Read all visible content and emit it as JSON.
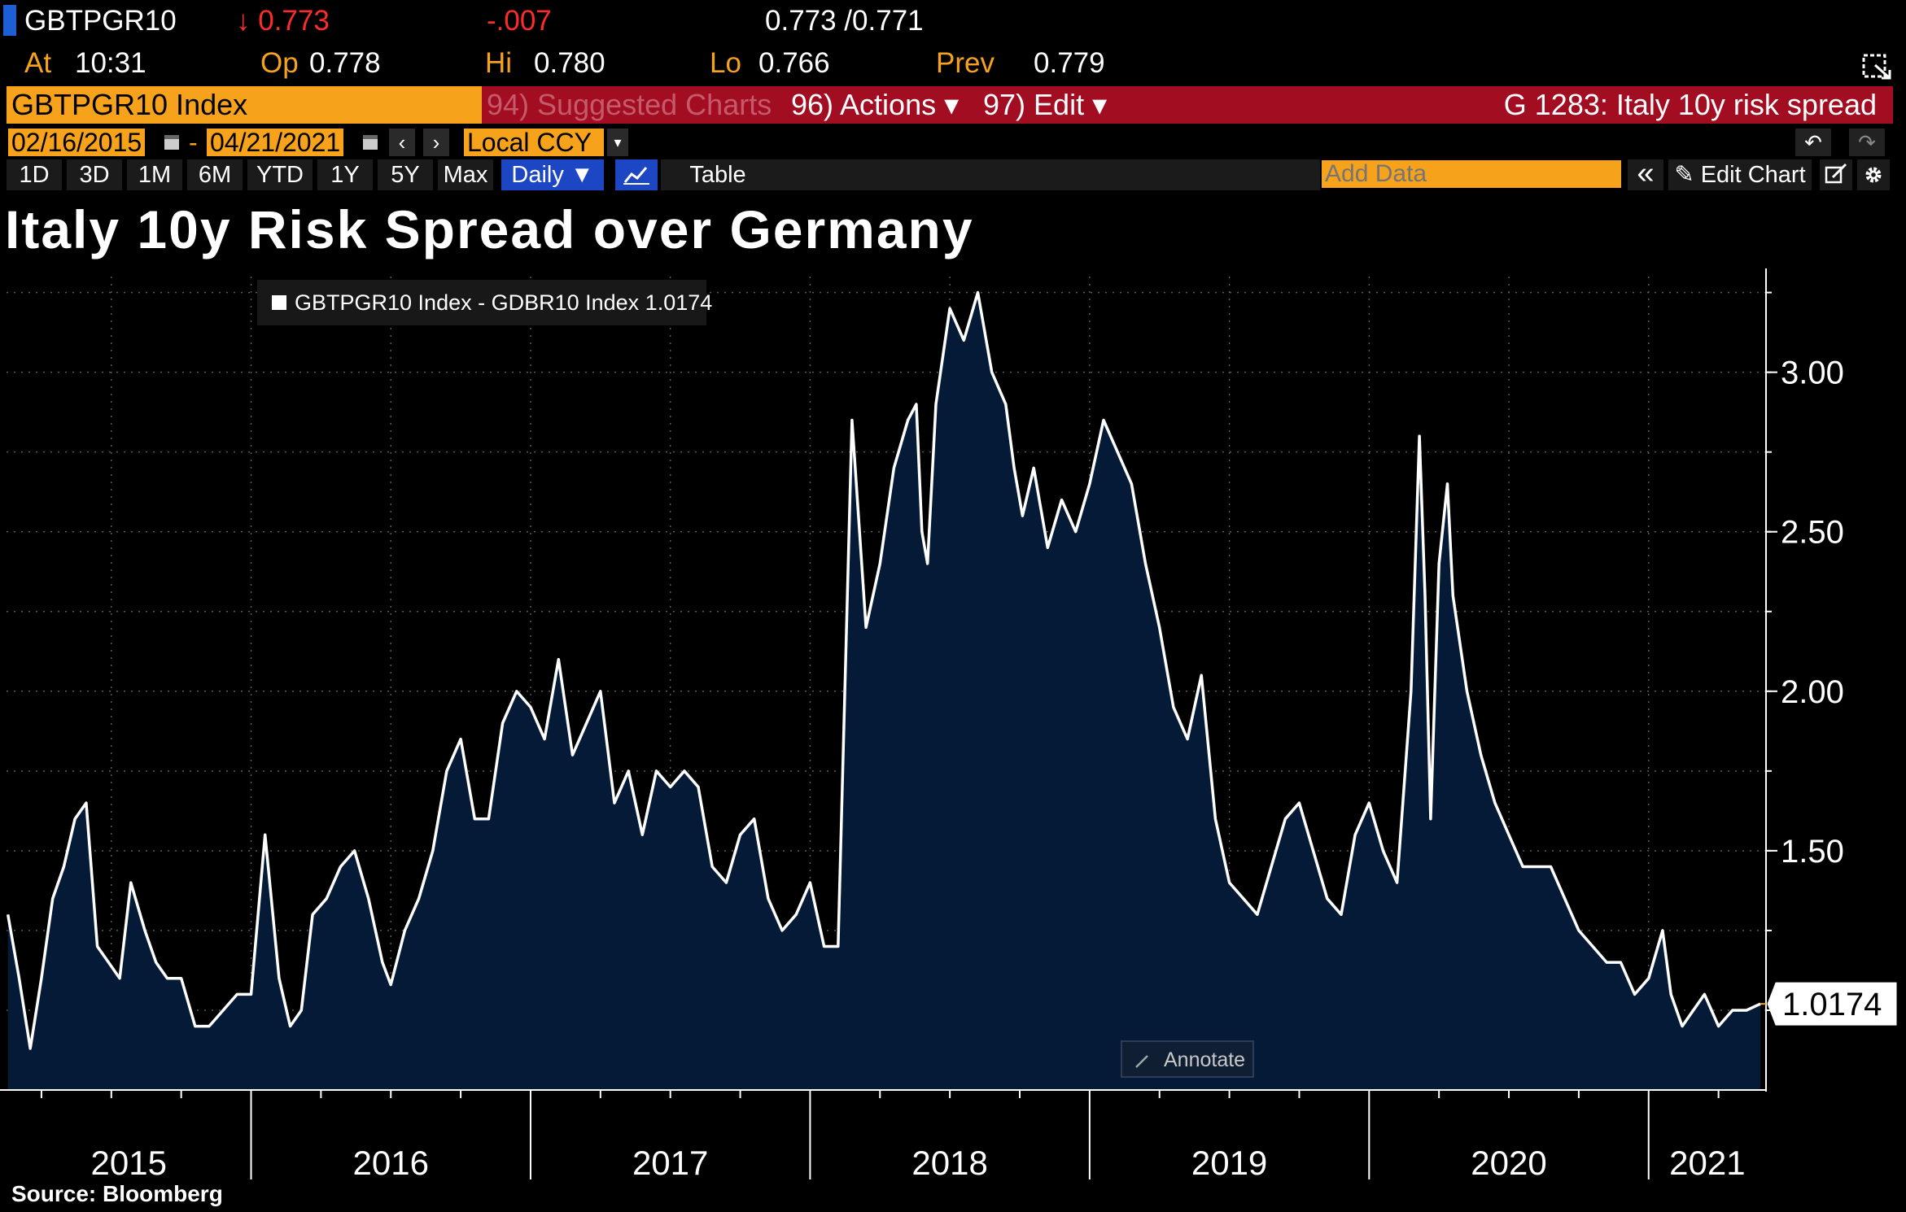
{
  "quote": {
    "ticker": "GBTPGR10",
    "last": "↓ 0.773",
    "change": "-.007",
    "bid_ask": "0.773 /0.771",
    "at_label": "At",
    "time": "10:31",
    "op_label": "Op",
    "open": "0.778",
    "hi_label": "Hi",
    "high": "0.780",
    "lo_label": "Lo",
    "low": "0.766",
    "prev_label": "Prev",
    "prev": "0.779"
  },
  "toolbar": {
    "security_field": "GBTPGR10 Index",
    "suggested": "94) Suggested Charts",
    "actions": "96) Actions ▾",
    "edit": "97) Edit ▾",
    "page_title": "G 1283: Italy 10y risk spread",
    "start_date": "02/16/2015",
    "dash": "-",
    "end_date": "04/21/2021",
    "prev_arrow": "‹",
    "next_arrow": "›",
    "currency": "Local CCY",
    "currency_arrow": "▾",
    "undo_icon": "↶",
    "redo_icon": "↷"
  },
  "ranges": [
    "1D",
    "3D",
    "1M",
    "6M",
    "YTD",
    "1Y",
    "5Y",
    "Max"
  ],
  "period": "Daily ▼",
  "table_label": "Table",
  "add_data_placeholder": "Add Data",
  "collapse_icon": "«",
  "edit_chart_label": "✎ Edit Chart",
  "annotate_label": "Annotate",
  "source": "Source:  Bloomberg",
  "colors": {
    "orange": "#f7a21b",
    "red_bar": "#a30d22",
    "area_fill": "#041a36",
    "line": "#ffffff",
    "accent_blue": "#1c46c4"
  },
  "chart_data": {
    "type": "area",
    "title": "Italy 10y Risk Spread over Germany",
    "series": [
      {
        "name": "GBTPGR10 Index - GDBR10 Index 1.0174"
      }
    ],
    "last_value_label": "1.0174",
    "x_tick_labels": [
      "2015",
      "2016",
      "2017",
      "2018",
      "2019",
      "2020",
      "2021"
    ],
    "y_tick_labels": [
      "1.50",
      "2.00",
      "2.50",
      "3.00"
    ],
    "ylim": [
      0.75,
      3.3
    ],
    "xlim": [
      2015.125,
      2021.42
    ],
    "grid": true,
    "x": [
      2015.13,
      2015.17,
      2015.21,
      2015.25,
      2015.29,
      2015.33,
      2015.37,
      2015.41,
      2015.45,
      2015.49,
      2015.53,
      2015.57,
      2015.62,
      2015.66,
      2015.7,
      2015.75,
      2015.8,
      2015.85,
      2015.9,
      2015.95,
      2016.0,
      2016.05,
      2016.1,
      2016.14,
      2016.18,
      2016.22,
      2016.27,
      2016.32,
      2016.37,
      2016.42,
      2016.47,
      2016.5,
      2016.55,
      2016.6,
      2016.65,
      2016.7,
      2016.75,
      2016.8,
      2016.85,
      2016.9,
      2016.95,
      2017.0,
      2017.05,
      2017.1,
      2017.15,
      2017.2,
      2017.25,
      2017.3,
      2017.35,
      2017.4,
      2017.45,
      2017.5,
      2017.55,
      2017.6,
      2017.65,
      2017.7,
      2017.75,
      2017.8,
      2017.85,
      2017.9,
      2017.95,
      2018.0,
      2018.05,
      2018.1,
      2018.15,
      2018.2,
      2018.25,
      2018.3,
      2018.35,
      2018.38,
      2018.4,
      2018.42,
      2018.45,
      2018.5,
      2018.55,
      2018.6,
      2018.65,
      2018.7,
      2018.73,
      2018.76,
      2018.8,
      2018.85,
      2018.9,
      2018.95,
      2019.0,
      2019.05,
      2019.1,
      2019.15,
      2019.2,
      2019.25,
      2019.3,
      2019.35,
      2019.4,
      2019.45,
      2019.5,
      2019.55,
      2019.6,
      2019.65,
      2019.7,
      2019.75,
      2019.8,
      2019.85,
      2019.9,
      2019.95,
      2020.0,
      2020.05,
      2020.1,
      2020.15,
      2020.18,
      2020.2,
      2020.22,
      2020.25,
      2020.28,
      2020.3,
      2020.35,
      2020.4,
      2020.45,
      2020.5,
      2020.55,
      2020.6,
      2020.65,
      2020.7,
      2020.75,
      2020.8,
      2020.85,
      2020.9,
      2020.95,
      2021.0,
      2021.05,
      2021.08,
      2021.12,
      2021.16,
      2021.2,
      2021.25,
      2021.3,
      2021.35,
      2021.4
    ],
    "values": [
      1.3,
      1.1,
      0.88,
      1.1,
      1.35,
      1.45,
      1.6,
      1.65,
      1.2,
      1.15,
      1.1,
      1.4,
      1.25,
      1.15,
      1.1,
      1.1,
      0.95,
      0.95,
      1.0,
      1.05,
      1.05,
      1.55,
      1.1,
      0.95,
      1.0,
      1.3,
      1.35,
      1.45,
      1.5,
      1.35,
      1.15,
      1.08,
      1.25,
      1.35,
      1.5,
      1.75,
      1.85,
      1.6,
      1.6,
      1.9,
      2.0,
      1.95,
      1.85,
      2.1,
      1.8,
      1.9,
      2.0,
      1.65,
      1.75,
      1.55,
      1.75,
      1.7,
      1.75,
      1.7,
      1.45,
      1.4,
      1.55,
      1.6,
      1.35,
      1.25,
      1.3,
      1.4,
      1.2,
      1.2,
      2.85,
      2.2,
      2.4,
      2.7,
      2.85,
      2.9,
      2.5,
      2.4,
      2.9,
      3.2,
      3.1,
      3.25,
      3.0,
      2.9,
      2.7,
      2.55,
      2.7,
      2.45,
      2.6,
      2.5,
      2.65,
      2.85,
      2.75,
      2.65,
      2.4,
      2.2,
      1.95,
      1.85,
      2.05,
      1.6,
      1.4,
      1.35,
      1.3,
      1.45,
      1.6,
      1.65,
      1.5,
      1.35,
      1.3,
      1.55,
      1.65,
      1.5,
      1.4,
      2.0,
      2.8,
      2.3,
      1.6,
      2.4,
      2.65,
      2.3,
      2.0,
      1.8,
      1.65,
      1.55,
      1.45,
      1.45,
      1.45,
      1.35,
      1.25,
      1.2,
      1.15,
      1.15,
      1.05,
      1.1,
      1.25,
      1.05,
      0.95,
      1.0,
      1.05,
      0.95,
      1.0,
      1.0,
      1.02
    ]
  }
}
